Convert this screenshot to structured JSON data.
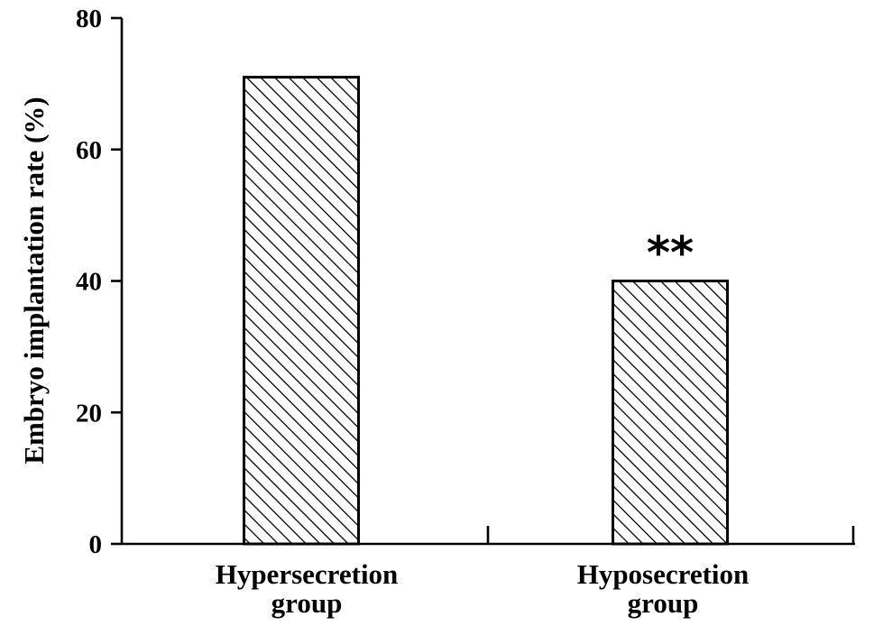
{
  "chart_data": {
    "type": "bar",
    "categories": [
      [
        "Hypersecretion",
        "group"
      ],
      [
        "Hyposecretion",
        "group"
      ]
    ],
    "values": [
      71,
      40
    ],
    "annotations": [
      "",
      "**"
    ],
    "ylabel": "Embryo implantation rate (%)",
    "xlabel": "",
    "ylim": [
      0,
      80
    ],
    "yticks": [
      "0",
      "20",
      "40",
      "60",
      "80"
    ],
    "bar_fill": "diagonal-hatch",
    "bar_color": "#000000",
    "background": "#ffffff",
    "grid": false,
    "legend": "none"
  }
}
